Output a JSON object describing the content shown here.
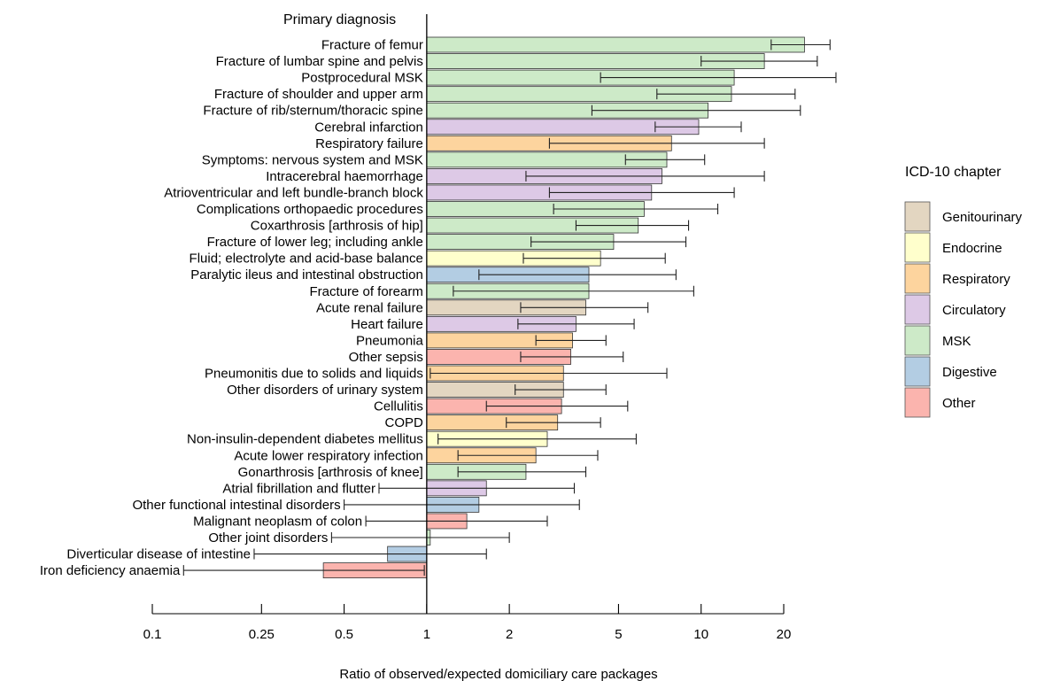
{
  "chart_data": {
    "type": "bar",
    "orientation": "horizontal",
    "x_scale": "log",
    "baseline": 1,
    "y_heading": "Primary diagnosis",
    "xlabel": "Ratio of observed/expected domiciliary care packages",
    "xlim": [
      0.1,
      25
    ],
    "x_ticks": [
      {
        "value": 0.1,
        "label": "0.1"
      },
      {
        "value": 0.25,
        "label": "0.25"
      },
      {
        "value": 0.5,
        "label": "0.5"
      },
      {
        "value": 1,
        "label": "1"
      },
      {
        "value": 2,
        "label": "2"
      },
      {
        "value": 5,
        "label": "5"
      },
      {
        "value": 10,
        "label": "10"
      },
      {
        "value": 20,
        "label": "20"
      }
    ],
    "legend": {
      "title": "ICD-10 chapter",
      "position": "right",
      "items": [
        {
          "key": "genitourinary",
          "label": "Genitourinary",
          "color": "#e3d6c1"
        },
        {
          "key": "endocrine",
          "label": "Endocrine",
          "color": "#ffffcc"
        },
        {
          "key": "respiratory",
          "label": "Respiratory",
          "color": "#fdd49e"
        },
        {
          "key": "circulatory",
          "label": "Circulatory",
          "color": "#ddc9e6"
        },
        {
          "key": "msk",
          "label": "MSK",
          "color": "#cdeac8"
        },
        {
          "key": "digestive",
          "label": "Digestive",
          "color": "#b3cde3"
        },
        {
          "key": "other",
          "label": "Other",
          "color": "#fbb4ae"
        }
      ]
    },
    "bars": [
      {
        "label": "Fracture of femur",
        "value": 23.8,
        "lo": 18.0,
        "hi": 29.5,
        "chapter": "msk"
      },
      {
        "label": "Fracture of lumbar spine and pelvis",
        "value": 17.0,
        "lo": 10.0,
        "hi": 26.5,
        "chapter": "msk"
      },
      {
        "label": "Postprocedural MSK",
        "value": 13.2,
        "lo": 4.3,
        "hi": 31.0,
        "chapter": "msk"
      },
      {
        "label": "Fracture of shoulder and upper arm",
        "value": 12.9,
        "lo": 6.9,
        "hi": 22.0,
        "chapter": "msk"
      },
      {
        "label": "Fracture of rib/sternum/thoracic spine",
        "value": 10.6,
        "lo": 4.0,
        "hi": 23.0,
        "chapter": "msk"
      },
      {
        "label": "Cerebral infarction",
        "value": 9.8,
        "lo": 6.8,
        "hi": 14.0,
        "chapter": "circulatory"
      },
      {
        "label": "Respiratory failure",
        "value": 7.8,
        "lo": 2.8,
        "hi": 17.0,
        "chapter": "respiratory"
      },
      {
        "label": "Symptoms: nervous system and MSK",
        "value": 7.5,
        "lo": 5.3,
        "hi": 10.3,
        "chapter": "msk"
      },
      {
        "label": "Intracerebral haemorrhage",
        "value": 7.2,
        "lo": 2.3,
        "hi": 17.0,
        "chapter": "circulatory"
      },
      {
        "label": "Atrioventricular and left bundle-branch block",
        "value": 6.6,
        "lo": 2.8,
        "hi": 13.2,
        "chapter": "circulatory"
      },
      {
        "label": "Complications orthopaedic procedures",
        "value": 6.2,
        "lo": 2.9,
        "hi": 11.5,
        "chapter": "msk"
      },
      {
        "label": "Coxarthrosis [arthrosis of hip]",
        "value": 5.9,
        "lo": 3.5,
        "hi": 9.0,
        "chapter": "msk"
      },
      {
        "label": "Fracture of lower leg; including ankle",
        "value": 4.8,
        "lo": 2.4,
        "hi": 8.8,
        "chapter": "msk"
      },
      {
        "label": "Fluid; electrolyte and acid-base balance",
        "value": 4.3,
        "lo": 2.25,
        "hi": 7.4,
        "chapter": "endocrine"
      },
      {
        "label": "Paralytic ileus and intestinal obstruction",
        "value": 3.9,
        "lo": 1.55,
        "hi": 8.1,
        "chapter": "digestive"
      },
      {
        "label": "Fracture of forearm",
        "value": 3.9,
        "lo": 1.25,
        "hi": 9.4,
        "chapter": "msk"
      },
      {
        "label": "Acute renal failure",
        "value": 3.8,
        "lo": 2.2,
        "hi": 6.4,
        "chapter": "genitourinary"
      },
      {
        "label": "Heart failure",
        "value": 3.5,
        "lo": 2.15,
        "hi": 5.7,
        "chapter": "circulatory"
      },
      {
        "label": "Pneumonia",
        "value": 3.4,
        "lo": 2.5,
        "hi": 4.5,
        "chapter": "respiratory"
      },
      {
        "label": "Other sepsis",
        "value": 3.35,
        "lo": 2.2,
        "hi": 5.2,
        "chapter": "other"
      },
      {
        "label": "Pneumonitis due to solids and liquids",
        "value": 3.15,
        "lo": 1.03,
        "hi": 7.5,
        "chapter": "respiratory"
      },
      {
        "label": "Other disorders of urinary system",
        "value": 3.15,
        "lo": 2.1,
        "hi": 4.5,
        "chapter": "genitourinary"
      },
      {
        "label": "Cellulitis",
        "value": 3.1,
        "lo": 1.65,
        "hi": 5.4,
        "chapter": "other"
      },
      {
        "label": "COPD",
        "value": 3.0,
        "lo": 1.95,
        "hi": 4.3,
        "chapter": "respiratory"
      },
      {
        "label": "Non-insulin-dependent diabetes mellitus",
        "value": 2.75,
        "lo": 1.1,
        "hi": 5.8,
        "chapter": "endocrine"
      },
      {
        "label": "Acute lower respiratory infection",
        "value": 2.5,
        "lo": 1.3,
        "hi": 4.2,
        "chapter": "respiratory"
      },
      {
        "label": "Gonarthrosis [arthrosis of knee]",
        "value": 2.3,
        "lo": 1.3,
        "hi": 3.8,
        "chapter": "msk"
      },
      {
        "label": "Atrial fibrillation and flutter",
        "value": 1.65,
        "lo": 0.67,
        "hi": 3.45,
        "chapter": "circulatory"
      },
      {
        "label": "Other functional intestinal disorders",
        "value": 1.55,
        "lo": 0.5,
        "hi": 3.6,
        "chapter": "digestive"
      },
      {
        "label": "Malignant neoplasm of colon",
        "value": 1.4,
        "lo": 0.6,
        "hi": 2.75,
        "chapter": "other"
      },
      {
        "label": "Other joint disorders",
        "value": 1.03,
        "lo": 0.45,
        "hi": 2.0,
        "chapter": "msk"
      },
      {
        "label": "Diverticular disease of intestine",
        "value": 0.72,
        "lo": 0.235,
        "hi": 1.65,
        "chapter": "digestive"
      },
      {
        "label": "Iron deficiency anaemia",
        "value": 0.42,
        "lo": 0.13,
        "hi": 0.98,
        "chapter": "other"
      }
    ]
  }
}
